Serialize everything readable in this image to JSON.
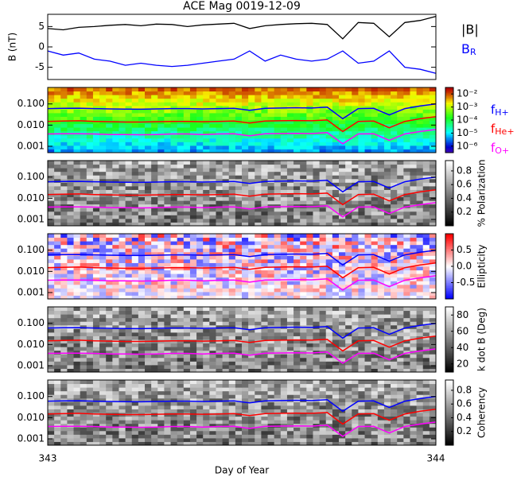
{
  "chart_data": {
    "type": "multi-panel",
    "title": "ACE Mag 0019-12-09",
    "xlabel": "Day of Year",
    "xlim": [
      343,
      344
    ],
    "xticks": [
      343,
      344
    ],
    "x": [
      343,
      343.04,
      343.08,
      343.12,
      343.16,
      343.2,
      343.24,
      343.28,
      343.32,
      343.36,
      343.4,
      343.44,
      343.48,
      343.52,
      343.56,
      343.6,
      343.64,
      343.68,
      343.72,
      343.76,
      343.8,
      343.84,
      343.88,
      343.92,
      343.96,
      344
    ],
    "frequency_lines": [
      {
        "name": "fH+",
        "color": "#0000ff",
        "values": [
          0.06,
          0.062,
          0.063,
          0.06,
          0.058,
          0.057,
          0.056,
          0.058,
          0.06,
          0.06,
          0.058,
          0.06,
          0.062,
          0.05,
          0.062,
          0.064,
          0.066,
          0.064,
          0.07,
          0.02,
          0.06,
          0.062,
          0.03,
          0.06,
          0.08,
          0.1
        ]
      },
      {
        "name": "fHe+",
        "color": "#ff0000",
        "values": [
          0.015,
          0.0155,
          0.016,
          0.015,
          0.0145,
          0.014,
          0.014,
          0.0145,
          0.015,
          0.015,
          0.0145,
          0.015,
          0.0155,
          0.0125,
          0.0155,
          0.016,
          0.0165,
          0.016,
          0.0175,
          0.005,
          0.015,
          0.0155,
          0.0075,
          0.015,
          0.02,
          0.025
        ]
      },
      {
        "name": "fO+",
        "color": "#ff00ff",
        "values": [
          0.0038,
          0.0039,
          0.0039,
          0.0038,
          0.0036,
          0.0036,
          0.0035,
          0.0036,
          0.0038,
          0.0038,
          0.0036,
          0.0038,
          0.0039,
          0.0031,
          0.0039,
          0.004,
          0.0041,
          0.004,
          0.0044,
          0.0013,
          0.0038,
          0.0039,
          0.0019,
          0.0038,
          0.005,
          0.0062
        ]
      }
    ],
    "panels": [
      {
        "type": "line",
        "ylabel": "B (nT)",
        "ylim": [
          -8,
          8
        ],
        "yticks": [
          5,
          0,
          -5
        ],
        "series": [
          {
            "name": "|B|",
            "color": "#000000",
            "values": [
              4.5,
              4.2,
              4.8,
              5.0,
              5.3,
              5.5,
              5.2,
              5.6,
              5.5,
              5.0,
              5.4,
              5.6,
              5.8,
              4.5,
              5.2,
              5.5,
              5.7,
              5.8,
              5.5,
              2.0,
              6.0,
              5.8,
              2.5,
              6.0,
              6.5,
              7.5
            ]
          },
          {
            "name": "BR",
            "color": "#0000ff",
            "values": [
              -1,
              -2,
              -1.5,
              -3,
              -3.5,
              -4.5,
              -4,
              -4.5,
              -4.8,
              -4.5,
              -4,
              -3.5,
              -3,
              -1,
              -3.5,
              -2,
              -3,
              -3.5,
              -3,
              -1,
              -4,
              -3.5,
              -1,
              -5,
              -5.5,
              -6.5
            ]
          }
        ]
      },
      {
        "type": "spectrogram",
        "log": true,
        "ylim": [
          0.0005,
          0.6
        ],
        "yticks": [
          {
            "value": 0.1,
            "label": "0.100"
          },
          {
            "value": 0.01,
            "label": "0.010"
          },
          {
            "value": 0.001,
            "label": "0.001"
          }
        ],
        "colormap": "rainbow",
        "clim": [
          -6.5,
          -1.5
        ],
        "cticks": [
          {
            "value": -2,
            "label": "10⁻²"
          },
          {
            "value": -3,
            "label": "10⁻³"
          },
          {
            "value": -4,
            "label": "10⁻⁴"
          },
          {
            "value": -5,
            "label": "10⁻⁵"
          },
          {
            "value": -6,
            "label": "10⁻⁶"
          }
        ],
        "legend": true
      },
      {
        "type": "spectrogram",
        "log": true,
        "ylim": [
          0.0005,
          0.6
        ],
        "yticks": [
          {
            "value": 0.1,
            "label": "0.100"
          },
          {
            "value": 0.01,
            "label": "0.010"
          },
          {
            "value": 0.001,
            "label": "0.001"
          }
        ],
        "colormap": "gray",
        "clim": [
          0,
          0.95
        ],
        "cticks": [
          0.8,
          0.6,
          0.4,
          0.2
        ],
        "clabel": "% Polarization"
      },
      {
        "type": "spectrogram",
        "log": true,
        "ylim": [
          0.0005,
          0.6
        ],
        "yticks": [
          {
            "value": 0.1,
            "label": "0.100"
          },
          {
            "value": 0.01,
            "label": "0.010"
          },
          {
            "value": 0.001,
            "label": "0.001"
          }
        ],
        "colormap": "bwr",
        "clim": [
          -1,
          1
        ],
        "cticks": [
          0.5,
          {
            "value": 0,
            "label": "0.0"
          },
          -0.5
        ],
        "clabel": "Ellipticity"
      },
      {
        "type": "spectrogram",
        "log": true,
        "ylim": [
          0.0005,
          0.6
        ],
        "yticks": [
          {
            "value": 0.1,
            "label": "0.100"
          },
          {
            "value": 0.01,
            "label": "0.010"
          },
          {
            "value": 0.001,
            "label": "0.001"
          }
        ],
        "colormap": "gray",
        "clim": [
          10,
          90
        ],
        "cticks": [
          80,
          60,
          40,
          20
        ],
        "clabel": "k dot B (Deg)"
      },
      {
        "type": "spectrogram",
        "log": true,
        "ylim": [
          0.0005,
          0.6
        ],
        "yticks": [
          {
            "value": 0.1,
            "label": "0.100"
          },
          {
            "value": 0.01,
            "label": "0.010"
          },
          {
            "value": 0.001,
            "label": "0.001"
          }
        ],
        "colormap": "gray",
        "clim": [
          0,
          0.95
        ],
        "cticks": [
          0.8,
          0.6,
          0.4,
          0.2
        ],
        "clabel": "Coherency"
      }
    ]
  }
}
